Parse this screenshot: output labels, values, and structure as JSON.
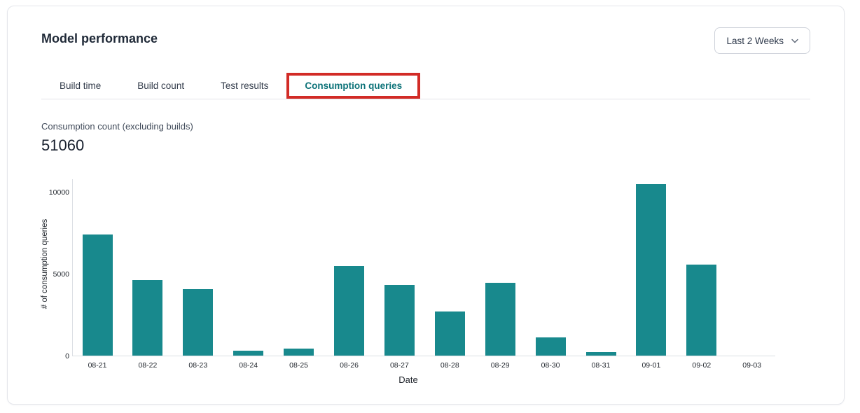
{
  "header": {
    "title": "Model performance",
    "date_range": {
      "label": "Last 2 Weeks"
    }
  },
  "tabs": [
    {
      "label": "Build time",
      "active": false
    },
    {
      "label": "Build count",
      "active": false
    },
    {
      "label": "Test results",
      "active": false
    },
    {
      "label": "Consumption queries",
      "active": true,
      "annotated": true
    }
  ],
  "metric": {
    "label": "Consumption count (excluding builds)",
    "value": "51060"
  },
  "chart_data": {
    "type": "bar",
    "categories": [
      "08-21",
      "08-22",
      "08-23",
      "08-24",
      "08-25",
      "08-26",
      "08-27",
      "08-28",
      "08-29",
      "08-30",
      "08-31",
      "09-01",
      "09-02",
      "09-03"
    ],
    "values": [
      7400,
      4600,
      4050,
      300,
      430,
      5480,
      4330,
      2700,
      4450,
      1130,
      200,
      10440,
      5550,
      0
    ],
    "title": "",
    "xlabel": "Date",
    "ylabel": "# of consumption queries",
    "ylim": [
      0,
      10800
    ],
    "yticks": [
      0,
      5000,
      10000
    ],
    "grid": false,
    "legend": false,
    "bar_color": "#18898d"
  },
  "colors": {
    "bar_teal": "#18898d",
    "active_tab_text": "#0d7379",
    "annotation_red": "#d22b26",
    "title_text": "#1f2937"
  }
}
